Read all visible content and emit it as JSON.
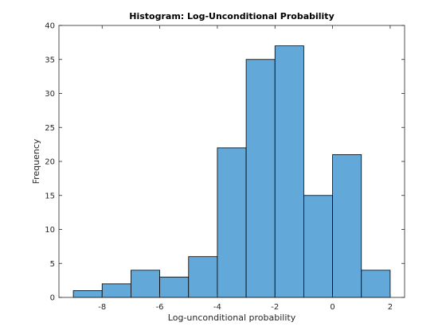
{
  "chart_data": {
    "type": "bar",
    "title": "Histogram: Log-Unconditional Probability",
    "xlabel": "Log-unconditional probability",
    "ylabel": "Frequency",
    "xlim": [
      -9.5,
      2.5
    ],
    "ylim": [
      0,
      40
    ],
    "xticks": [
      -8,
      -6,
      -4,
      -2,
      0,
      2
    ],
    "yticks": [
      0,
      5,
      10,
      15,
      20,
      25,
      30,
      35,
      40
    ],
    "bin_edges": [
      -9,
      -8,
      -7,
      -6,
      -5,
      -4,
      -3,
      -2,
      -1,
      0,
      1,
      2
    ],
    "values": [
      1,
      2,
      4,
      3,
      6,
      22,
      35,
      37,
      15,
      21,
      4
    ],
    "bar_color": "#62a8d8",
    "edge_color": "#000000",
    "grid": false
  }
}
